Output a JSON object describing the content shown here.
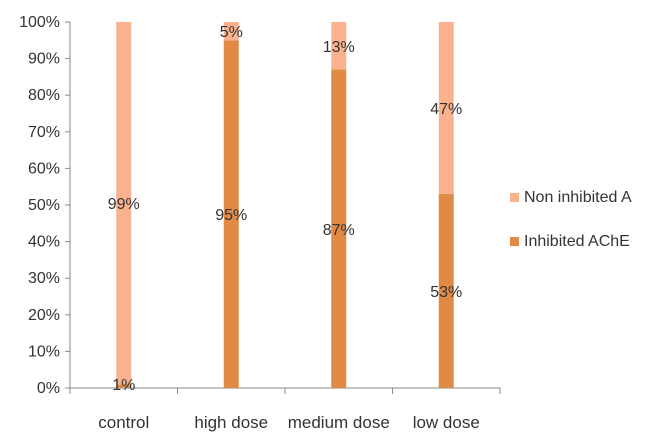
{
  "chart_data": {
    "type": "bar",
    "stacked": "percent",
    "categories": [
      "control",
      "high dose",
      "medium dose",
      "low dose"
    ],
    "series": [
      {
        "name": "Inhibited AChE",
        "values": [
          1,
          95,
          87,
          53
        ],
        "labels": [
          "1%",
          "95%",
          "87%",
          "53%"
        ],
        "color": "#E08A45"
      },
      {
        "name": "Non inhibited AChE",
        "values": [
          99,
          5,
          13,
          47
        ],
        "labels": [
          "99%",
          "5%",
          "13%",
          "47%"
        ],
        "color": "#F9B28D"
      }
    ],
    "legend_labels": [
      "Non inhibited A",
      "Inhibited AChE"
    ],
    "ylim": [
      0,
      100
    ],
    "yticks": [
      "0%",
      "10%",
      "20%",
      "30%",
      "40%",
      "50%",
      "60%",
      "70%",
      "80%",
      "90%",
      "100%"
    ],
    "grid": false,
    "legend_position": "right"
  }
}
